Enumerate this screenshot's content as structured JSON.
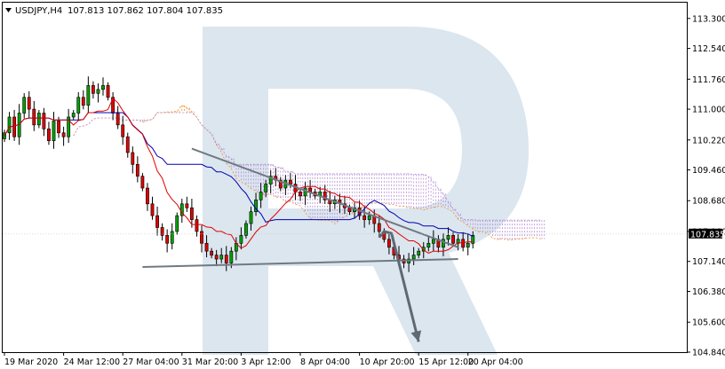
{
  "header": {
    "symbol": "USDJPY,H4",
    "ohlc": "107.813 107.862 107.804 107.835"
  },
  "price_tag": "107.835",
  "colors": {
    "bull": "#00a000",
    "bear": "#e00000",
    "candle_wick": "#000000",
    "tenkan": "#e00000",
    "kijun": "#0000b0",
    "cloud_bull": "#f28a2e",
    "cloud_bear": "#b48cd2",
    "trendline": "#6f7a82",
    "arrow": "#5d6a74",
    "watermark": "#cfdde9"
  },
  "icons": {
    "menu": "triangle-down-icon",
    "watermark": "logo-r-watermark"
  },
  "chart_data": {
    "type": "candlestick",
    "title": "USDJPY,H4",
    "ylim": [
      104.84,
      113.7
    ],
    "y_ticks": [
      "113.300",
      "112.540",
      "111.760",
      "111.000",
      "110.220",
      "109.460",
      "108.680",
      "107.900",
      "107.140",
      "106.380",
      "105.600",
      "104.840"
    ],
    "x_ticks": [
      "19 Mar 2020",
      "24 Mar 12:00",
      "27 Mar 04:00",
      "31 Mar 20:00",
      "3 Apr 12:00",
      "8 Apr 04:00",
      "10 Apr 20:00",
      "15 Apr 12:00",
      "20 Apr 04:00"
    ],
    "last_price": 107.835,
    "closes": [
      110.4,
      110.8,
      110.3,
      110.9,
      111.3,
      111.0,
      110.6,
      110.9,
      110.5,
      110.2,
      110.7,
      110.4,
      110.3,
      110.8,
      110.9,
      111.3,
      111.1,
      111.6,
      111.4,
      111.5,
      111.6,
      111.3,
      110.9,
      110.6,
      110.3,
      109.9,
      109.6,
      109.3,
      109.0,
      108.6,
      108.3,
      108.0,
      107.8,
      107.6,
      107.9,
      108.3,
      108.6,
      108.5,
      108.2,
      107.9,
      107.6,
      107.4,
      107.3,
      107.2,
      107.3,
      107.1,
      107.4,
      107.6,
      107.8,
      108.1,
      108.4,
      108.7,
      108.9,
      109.1,
      109.3,
      109.2,
      109.0,
      109.2,
      109.1,
      108.9,
      108.8,
      109.0,
      108.9,
      108.8,
      108.9,
      108.7,
      108.6,
      108.7,
      108.6,
      108.5,
      108.4,
      108.5,
      108.3,
      108.2,
      108.3,
      108.1,
      107.9,
      107.7,
      107.5,
      107.3,
      107.2,
      107.1,
      107.2,
      107.3,
      107.4,
      107.5,
      107.6,
      107.7,
      107.5,
      107.7,
      107.8,
      107.6,
      107.7,
      107.5,
      107.6,
      107.8
    ],
    "annotations": [
      {
        "type": "trendline",
        "name": "descending resistance",
        "from": [
          38,
          110.0
        ],
        "to": [
          92,
          107.5
        ]
      },
      {
        "type": "trendline",
        "name": "ascending support",
        "from": [
          28,
          107.0
        ],
        "to": [
          92,
          107.2
        ]
      },
      {
        "type": "arrow",
        "name": "forecast path",
        "points": [
          [
            76,
            107.75
          ],
          [
            77,
            107.9
          ],
          [
            78.5,
            107.85
          ],
          [
            84,
            105.1
          ]
        ]
      }
    ],
    "indicator": "Ichimoku Kinko Hyo",
    "grid": false,
    "legend": "none"
  }
}
